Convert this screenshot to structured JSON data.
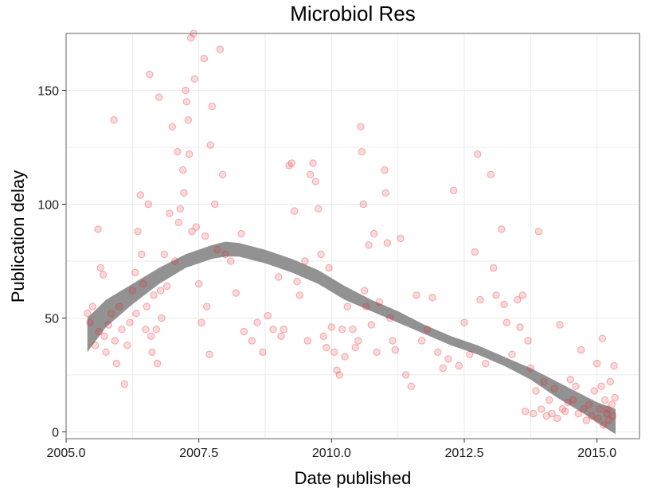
{
  "chart_data": {
    "type": "scatter",
    "title": "Microbiol Res",
    "xlabel": "Date published",
    "ylabel": "Publication delay",
    "xlim": [
      2005.0,
      2015.8
    ],
    "ylim": [
      -3,
      175
    ],
    "x_ticks": [
      2005.0,
      2007.5,
      2010.0,
      2012.5,
      2015.0
    ],
    "x_tick_labels": [
      "2005.0",
      "2007.5",
      "2010.0",
      "2012.5",
      "2015.0"
    ],
    "y_ticks": [
      0,
      50,
      100,
      150
    ],
    "y_tick_labels": [
      "0",
      "50",
      "100",
      "150"
    ],
    "grid": true,
    "colors": {
      "points": "#e8262a",
      "band": "#8c8c8c",
      "panel_border": "#7f7f7f",
      "grid": "#ebebeb"
    },
    "series": [
      {
        "kind": "points",
        "points": [
          [
            2005.4,
            52
          ],
          [
            2005.45,
            48
          ],
          [
            2005.5,
            55
          ],
          [
            2005.55,
            38
          ],
          [
            2005.6,
            89
          ],
          [
            2005.62,
            44
          ],
          [
            2005.65,
            72
          ],
          [
            2005.7,
            69
          ],
          [
            2005.72,
            42
          ],
          [
            2005.75,
            35
          ],
          [
            2005.8,
            47
          ],
          [
            2005.85,
            52
          ],
          [
            2005.9,
            137
          ],
          [
            2005.92,
            40
          ],
          [
            2005.95,
            30
          ],
          [
            2006.0,
            55
          ],
          [
            2006.05,
            45
          ],
          [
            2006.1,
            21
          ],
          [
            2006.15,
            38
          ],
          [
            2006.2,
            48
          ],
          [
            2006.25,
            62
          ],
          [
            2006.3,
            70
          ],
          [
            2006.32,
            52
          ],
          [
            2006.35,
            88
          ],
          [
            2006.4,
            104
          ],
          [
            2006.42,
            78
          ],
          [
            2006.45,
            65
          ],
          [
            2006.5,
            45
          ],
          [
            2006.52,
            55
          ],
          [
            2006.55,
            100
          ],
          [
            2006.57,
            157
          ],
          [
            2006.6,
            42
          ],
          [
            2006.62,
            35
          ],
          [
            2006.65,
            60
          ],
          [
            2006.7,
            45
          ],
          [
            2006.72,
            30
          ],
          [
            2006.75,
            147
          ],
          [
            2006.78,
            62
          ],
          [
            2006.8,
            50
          ],
          [
            2006.85,
            78
          ],
          [
            2006.9,
            64
          ],
          [
            2006.95,
            96
          ],
          [
            2007.0,
            134
          ],
          [
            2007.05,
            75
          ],
          [
            2007.1,
            123
          ],
          [
            2007.12,
            92
          ],
          [
            2007.15,
            98
          ],
          [
            2007.2,
            115
          ],
          [
            2007.22,
            105
          ],
          [
            2007.25,
            150
          ],
          [
            2007.27,
            145
          ],
          [
            2007.3,
            137
          ],
          [
            2007.32,
            122
          ],
          [
            2007.35,
            173
          ],
          [
            2007.37,
            88
          ],
          [
            2007.4,
            175
          ],
          [
            2007.42,
            155
          ],
          [
            2007.45,
            90
          ],
          [
            2007.5,
            65
          ],
          [
            2007.55,
            48
          ],
          [
            2007.6,
            164
          ],
          [
            2007.62,
            86
          ],
          [
            2007.65,
            55
          ],
          [
            2007.7,
            34
          ],
          [
            2007.72,
            126
          ],
          [
            2007.75,
            143
          ],
          [
            2007.8,
            100
          ],
          [
            2007.85,
            80
          ],
          [
            2007.9,
            168
          ],
          [
            2007.95,
            113
          ],
          [
            2008.0,
            78
          ],
          [
            2008.1,
            75
          ],
          [
            2008.2,
            61
          ],
          [
            2008.3,
            87
          ],
          [
            2008.35,
            44
          ],
          [
            2008.5,
            40
          ],
          [
            2008.6,
            48
          ],
          [
            2008.7,
            35
          ],
          [
            2008.8,
            51
          ],
          [
            2008.9,
            45
          ],
          [
            2009.0,
            68
          ],
          [
            2009.05,
            42
          ],
          [
            2009.1,
            45
          ],
          [
            2009.2,
            117
          ],
          [
            2009.25,
            118
          ],
          [
            2009.3,
            97
          ],
          [
            2009.35,
            66
          ],
          [
            2009.4,
            60
          ],
          [
            2009.5,
            75
          ],
          [
            2009.55,
            40
          ],
          [
            2009.6,
            113
          ],
          [
            2009.65,
            118
          ],
          [
            2009.7,
            110
          ],
          [
            2009.75,
            98
          ],
          [
            2009.8,
            78
          ],
          [
            2009.85,
            42
          ],
          [
            2009.9,
            37
          ],
          [
            2009.95,
            72
          ],
          [
            2010.0,
            46
          ],
          [
            2010.05,
            35
          ],
          [
            2010.1,
            27
          ],
          [
            2010.15,
            25
          ],
          [
            2010.2,
            45
          ],
          [
            2010.25,
            33
          ],
          [
            2010.3,
            55
          ],
          [
            2010.4,
            45
          ],
          [
            2010.45,
            37
          ],
          [
            2010.5,
            40
          ],
          [
            2010.55,
            134
          ],
          [
            2010.57,
            123
          ],
          [
            2010.6,
            100
          ],
          [
            2010.62,
            62
          ],
          [
            2010.65,
            55
          ],
          [
            2010.7,
            82
          ],
          [
            2010.75,
            47
          ],
          [
            2010.8,
            87
          ],
          [
            2010.85,
            35
          ],
          [
            2010.9,
            57
          ],
          [
            2011.0,
            115
          ],
          [
            2011.02,
            105
          ],
          [
            2011.05,
            83
          ],
          [
            2011.1,
            50
          ],
          [
            2011.15,
            40
          ],
          [
            2011.2,
            36
          ],
          [
            2011.3,
            85
          ],
          [
            2011.4,
            25
          ],
          [
            2011.5,
            20
          ],
          [
            2011.6,
            60
          ],
          [
            2011.7,
            40
          ],
          [
            2011.8,
            45
          ],
          [
            2011.9,
            59
          ],
          [
            2012.0,
            35
          ],
          [
            2012.1,
            28
          ],
          [
            2012.2,
            32
          ],
          [
            2012.3,
            106
          ],
          [
            2012.4,
            29
          ],
          [
            2012.5,
            48
          ],
          [
            2012.6,
            34
          ],
          [
            2012.7,
            79
          ],
          [
            2012.75,
            122
          ],
          [
            2012.8,
            58
          ],
          [
            2012.9,
            30
          ],
          [
            2013.0,
            113
          ],
          [
            2013.05,
            72
          ],
          [
            2013.1,
            60
          ],
          [
            2013.2,
            89
          ],
          [
            2013.25,
            56
          ],
          [
            2013.3,
            48
          ],
          [
            2013.4,
            34
          ],
          [
            2013.5,
            58
          ],
          [
            2013.55,
            46
          ],
          [
            2013.6,
            60
          ],
          [
            2013.65,
            9
          ],
          [
            2013.7,
            40
          ],
          [
            2013.75,
            28
          ],
          [
            2013.8,
            8
          ],
          [
            2013.85,
            18
          ],
          [
            2013.9,
            88
          ],
          [
            2013.95,
            10
          ],
          [
            2014.0,
            22
          ],
          [
            2014.05,
            7
          ],
          [
            2014.1,
            14
          ],
          [
            2014.15,
            8
          ],
          [
            2014.2,
            19
          ],
          [
            2014.25,
            6
          ],
          [
            2014.3,
            47
          ],
          [
            2014.35,
            10
          ],
          [
            2014.4,
            9
          ],
          [
            2014.45,
            13
          ],
          [
            2014.5,
            23
          ],
          [
            2014.55,
            14
          ],
          [
            2014.6,
            20
          ],
          [
            2014.65,
            8
          ],
          [
            2014.7,
            36
          ],
          [
            2014.75,
            10
          ],
          [
            2014.8,
            5
          ],
          [
            2014.85,
            12
          ],
          [
            2014.9,
            7
          ],
          [
            2014.95,
            18
          ],
          [
            2015.0,
            30
          ],
          [
            2015.02,
            6
          ],
          [
            2015.05,
            10
          ],
          [
            2015.08,
            20
          ],
          [
            2015.1,
            41
          ],
          [
            2015.12,
            3
          ],
          [
            2015.15,
            14
          ],
          [
            2015.18,
            8
          ],
          [
            2015.2,
            10
          ],
          [
            2015.22,
            5
          ],
          [
            2015.25,
            22
          ],
          [
            2015.28,
            12
          ],
          [
            2015.3,
            7
          ],
          [
            2015.32,
            29
          ],
          [
            2015.34,
            15
          ]
        ]
      },
      {
        "kind": "smooth-band",
        "upper": [
          [
            2005.4,
            50
          ],
          [
            2005.75,
            58
          ],
          [
            2006.25,
            65
          ],
          [
            2006.75,
            72
          ],
          [
            2007.25,
            78
          ],
          [
            2007.75,
            82
          ],
          [
            2008.0,
            83.5
          ],
          [
            2008.25,
            83
          ],
          [
            2008.75,
            80
          ],
          [
            2009.25,
            76
          ],
          [
            2009.75,
            71
          ],
          [
            2010.25,
            64
          ],
          [
            2010.75,
            58
          ],
          [
            2011.25,
            53
          ],
          [
            2011.75,
            47
          ],
          [
            2012.25,
            42
          ],
          [
            2012.75,
            38
          ],
          [
            2013.25,
            33
          ],
          [
            2013.75,
            28
          ],
          [
            2014.25,
            22
          ],
          [
            2014.75,
            16
          ],
          [
            2015.0,
            13
          ],
          [
            2015.35,
            10
          ]
        ],
        "lower": [
          [
            2005.4,
            35
          ],
          [
            2005.75,
            46
          ],
          [
            2006.25,
            56
          ],
          [
            2006.75,
            65
          ],
          [
            2007.25,
            72
          ],
          [
            2007.75,
            76
          ],
          [
            2008.0,
            77
          ],
          [
            2008.25,
            77
          ],
          [
            2008.75,
            74
          ],
          [
            2009.25,
            70
          ],
          [
            2009.75,
            65
          ],
          [
            2010.25,
            58
          ],
          [
            2010.75,
            53
          ],
          [
            2011.25,
            48
          ],
          [
            2011.75,
            43
          ],
          [
            2012.25,
            38
          ],
          [
            2012.75,
            34
          ],
          [
            2013.25,
            29
          ],
          [
            2013.75,
            23
          ],
          [
            2014.25,
            15
          ],
          [
            2014.75,
            8
          ],
          [
            2015.0,
            4
          ],
          [
            2015.35,
            -1
          ]
        ]
      }
    ]
  }
}
